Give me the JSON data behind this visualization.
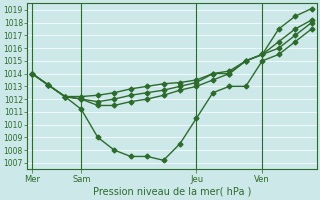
{
  "bg_color": "#cce8e8",
  "line_color": "#2d6b2d",
  "title": "Pression niveau de la mer( hPa )",
  "ylim": [
    1006.5,
    1019.5
  ],
  "yticks": [
    1007,
    1008,
    1009,
    1010,
    1011,
    1012,
    1013,
    1014,
    1015,
    1016,
    1017,
    1018,
    1019
  ],
  "day_labels": [
    "Mer",
    "Sam",
    "Jeu",
    "Ven"
  ],
  "day_positions": [
    0,
    3,
    10,
    14
  ],
  "xlim": [
    -0.3,
    17.3
  ],
  "series": [
    [
      1014.0,
      1013.1,
      1012.2,
      1012.2,
      1012.3,
      1012.5,
      1012.8,
      1013.0,
      1013.2,
      1013.3,
      1013.5,
      1014.0,
      1014.2,
      1015.0,
      1015.5,
      1017.5,
      1018.5,
      1019.1
    ],
    [
      1014.0,
      1013.1,
      1012.2,
      1012.0,
      1011.8,
      1012.0,
      1012.3,
      1012.5,
      1012.7,
      1013.0,
      1013.3,
      1014.0,
      1014.0,
      1015.0,
      1015.5,
      1016.5,
      1017.5,
      1018.2
    ],
    [
      1014.0,
      1013.1,
      1012.2,
      1012.0,
      1011.5,
      1011.5,
      1011.8,
      1012.0,
      1012.3,
      1012.7,
      1013.0,
      1013.5,
      1014.0,
      1015.0,
      1015.5,
      1016.0,
      1017.0,
      1018.0
    ],
    [
      1014.0,
      1013.1,
      1012.2,
      1011.2,
      1009.0,
      1008.0,
      1007.5,
      1007.5,
      1007.2,
      1008.5,
      1010.5,
      1012.5,
      1013.0,
      1013.0,
      1015.0,
      1015.5,
      1016.5,
      1017.5
    ]
  ],
  "marker": "D",
  "markersize": 2.5,
  "linewidth": 1.0
}
